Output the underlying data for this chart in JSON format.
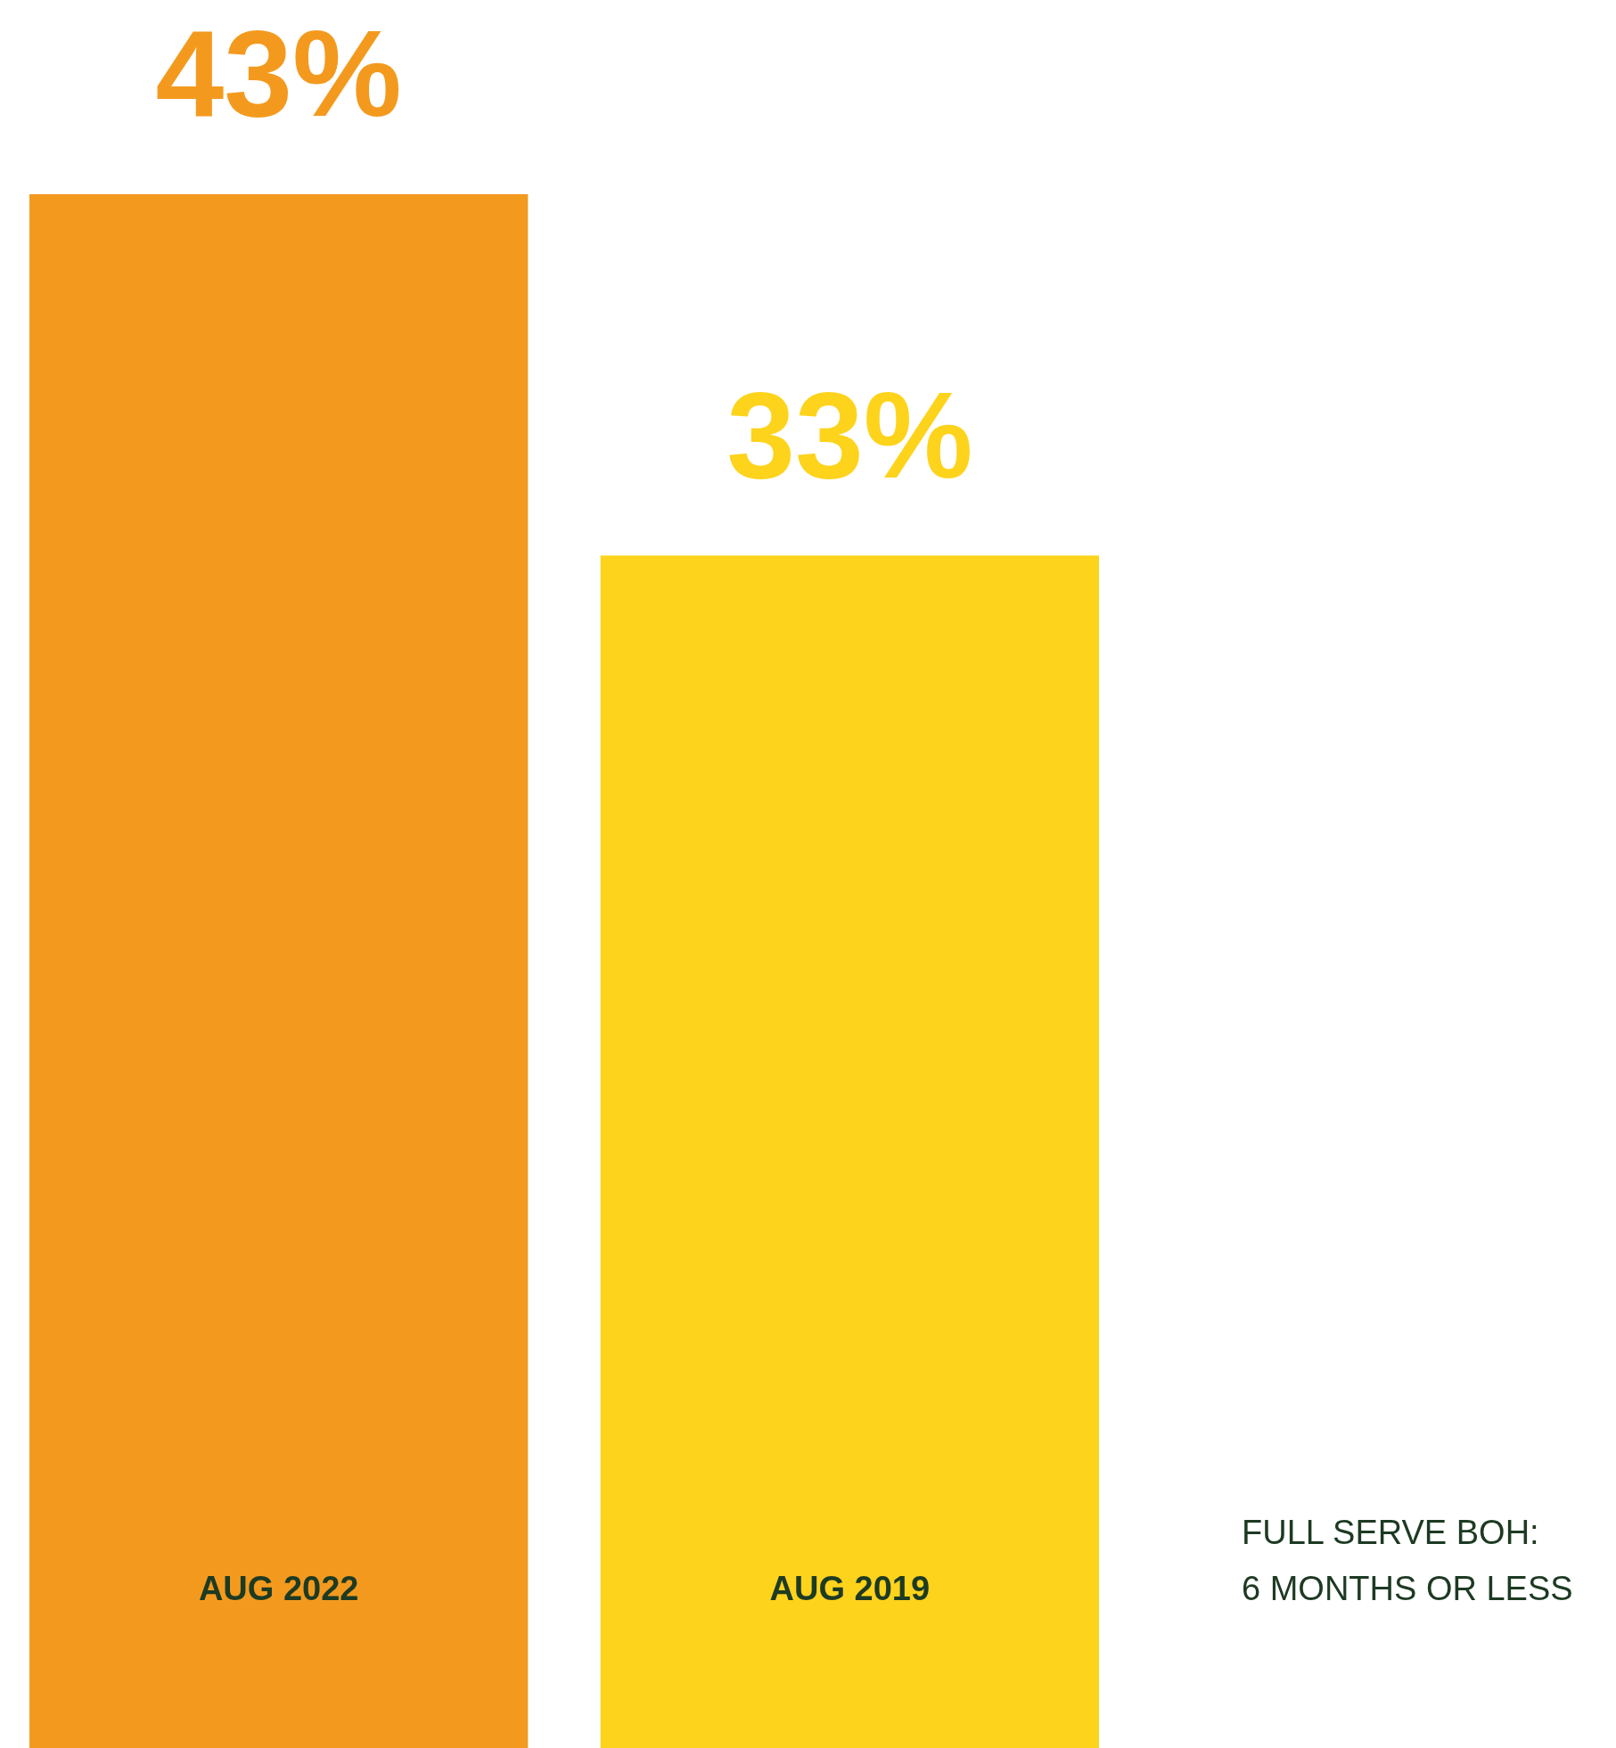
{
  "chart_data": {
    "type": "bar",
    "categories": [
      "AUG 2022",
      "AUG 2019"
    ],
    "values": [
      43,
      33
    ],
    "colors": [
      "#f39a1e",
      "#fdd31c"
    ],
    "value_labels": [
      "43%",
      "33%"
    ],
    "annotations": [
      "FULL SERVE BOH:\n6 MONTHS OR LESS"
    ]
  }
}
